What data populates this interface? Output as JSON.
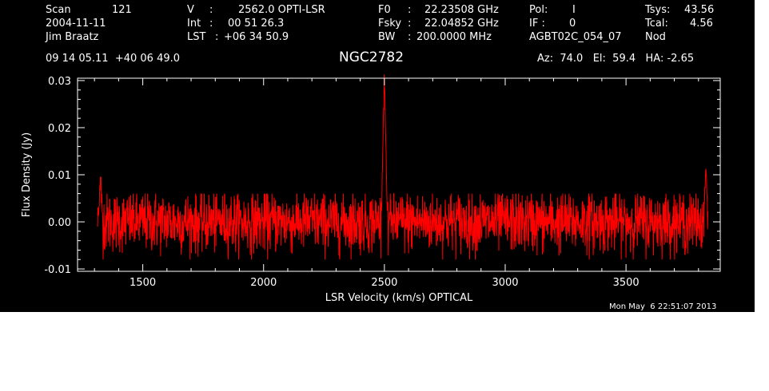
{
  "header": {
    "scan_label": "Scan",
    "scan_value": "121",
    "date": "2004-11-11",
    "observer": "Jim Braatz",
    "v_label": "V",
    "v_value": "2562.0 OPTI-LSR",
    "int_label": "Int",
    "int_value": "00 51 26.3",
    "lst_label": "LST",
    "lst_value": "+06 34 50.9",
    "f0_label": "F0",
    "f0_value": "22.23508 GHz",
    "fsky_label": "Fsky",
    "fsky_value": "22.04852 GHz",
    "bw_label": "BW",
    "bw_value": "200.0000 MHz",
    "pol_label": "Pol:",
    "pol_value": "I",
    "if_label": "IF :",
    "if_value": "0",
    "project": "AGBT02C_054_07",
    "tsys_label": "Tsys:",
    "tsys_value": "43.56",
    "tcal_label": "Tcal:",
    "tcal_value": "4.56",
    "mode": "Nod",
    "coords": "09 14 05.11  +40 06 49.0",
    "source": "NGC2782",
    "az_el_ha": "Az:  74.0   El:  59.4   HA: -2.65",
    "timestamp": "Mon May  6 22:51:07 2013"
  },
  "chart_data": {
    "type": "line",
    "xlabel": "LSR Velocity (km/s) OPTICAL",
    "ylabel": "Flux Density (Jy)",
    "xlim": [
      1230,
      3890
    ],
    "ylim": [
      -0.0105,
      0.0305
    ],
    "x_ticks": [
      1500,
      2000,
      2500,
      3000,
      3500
    ],
    "x_tick_labels": [
      "1500",
      "2000",
      "2500",
      "3000",
      "3500"
    ],
    "y_ticks": [
      -0.01,
      0.0,
      0.01,
      0.02,
      0.03
    ],
    "y_tick_labels": [
      "-0.01",
      "0.00",
      "0.01",
      "0.02",
      "0.03"
    ],
    "series": [
      {
        "color": "#ff0000",
        "x_range": [
          1313,
          3840
        ],
        "noise_rms": 0.0032,
        "peaks": [
          {
            "x": 2500,
            "y": 0.027
          },
          {
            "x": 2496,
            "y": 0.02
          },
          {
            "x": 2504,
            "y": 0.013
          },
          {
            "x": 3830,
            "y": 0.011
          },
          {
            "x": 1325,
            "y": 0.0095
          }
        ]
      }
    ]
  }
}
